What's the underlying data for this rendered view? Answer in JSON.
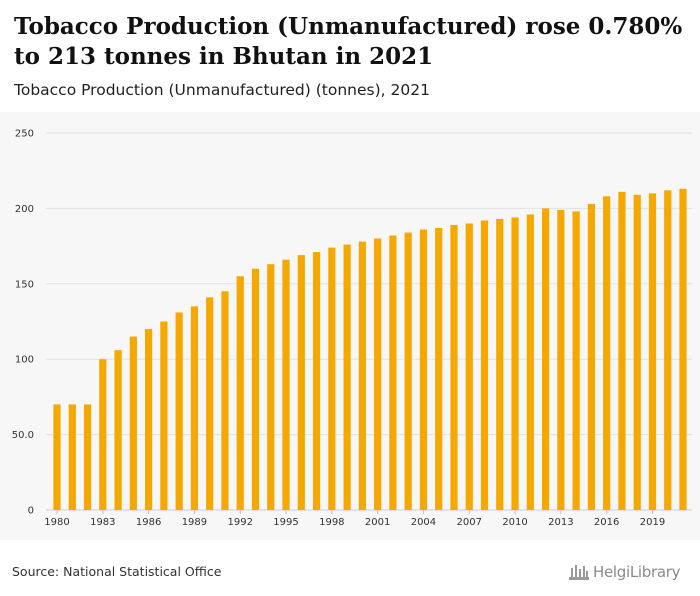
{
  "title": "Tobacco Production (Unmanufactured) rose 0.780% to 213 tonnes in Bhutan in 2021",
  "subtitle": "Tobacco Production (Unmanufactured) (tonnes), 2021",
  "source": "Source: National Statistical Office",
  "brand": "HelgiLibrary",
  "colors": {
    "bar": "#f5a800",
    "grid": "#e2e2e2",
    "chart_bg": "#f7f7f7"
  },
  "chart_data": {
    "type": "bar",
    "title": "",
    "xlabel": "",
    "ylabel": "",
    "ylim": [
      0,
      250
    ],
    "grid": true,
    "yticks": [
      {
        "value": 0,
        "label": "0"
      },
      {
        "value": 50,
        "label": "50.0"
      },
      {
        "value": 100,
        "label": "100"
      },
      {
        "value": 150,
        "label": "150"
      },
      {
        "value": 200,
        "label": "200"
      },
      {
        "value": 250,
        "label": "250"
      }
    ],
    "xtick_labels": [
      "1980",
      "1983",
      "1986",
      "1989",
      "1992",
      "1995",
      "1998",
      "2001",
      "2004",
      "2007",
      "2010",
      "2013",
      "2016",
      "2019"
    ],
    "categories": [
      "1980",
      "1981",
      "1982",
      "1983",
      "1984",
      "1985",
      "1986",
      "1987",
      "1988",
      "1989",
      "1990",
      "1991",
      "1992",
      "1993",
      "1994",
      "1995",
      "1996",
      "1997",
      "1998",
      "1999",
      "2000",
      "2001",
      "2002",
      "2003",
      "2004",
      "2005",
      "2006",
      "2007",
      "2008",
      "2009",
      "2010",
      "2011",
      "2012",
      "2013",
      "2014",
      "2015",
      "2016",
      "2017",
      "2018",
      "2019",
      "2020",
      "2021"
    ],
    "values": [
      70,
      70,
      70,
      100,
      106,
      115,
      120,
      125,
      131,
      135,
      141,
      145,
      155,
      160,
      163,
      166,
      169,
      171,
      174,
      176,
      178,
      180,
      182,
      184,
      186,
      187,
      189,
      190,
      192,
      193,
      194,
      196,
      200,
      199,
      198,
      203,
      208,
      211,
      209,
      210,
      212,
      213
    ]
  }
}
